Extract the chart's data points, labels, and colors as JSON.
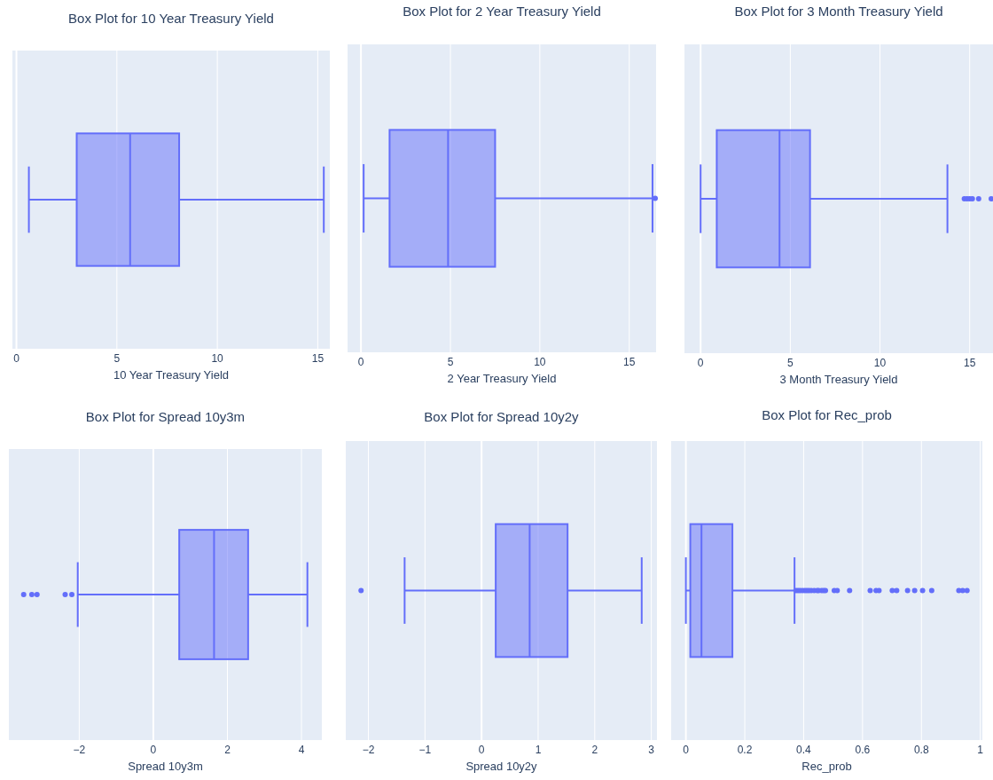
{
  "chart_data": [
    {
      "type": "box",
      "title": "Box Plot for 10 Year Treasury Yield",
      "xlabel": "10 Year Treasury Yield",
      "orientation": "horizontal",
      "categories": [
        null
      ],
      "color": "#636efa",
      "boxes": [
        {
          "low": 0.62,
          "q1": 3.0,
          "median": 5.66,
          "q3": 8.1,
          "high": 15.3
        }
      ],
      "xlim": [
        -0.2,
        15.6
      ],
      "xticks": [
        0,
        5,
        10,
        15
      ],
      "grid": "x",
      "tick_labels": "x"
    },
    {
      "type": "box",
      "title": "Box Plot for 2 Year Treasury Yield",
      "xlabel": "2 Year Treasury Yield",
      "orientation": "horizontal",
      "categories": [
        null
      ],
      "color": "#636efa",
      "boxes": [
        {
          "low": 0.15,
          "q1": 1.6,
          "median": 4.87,
          "q3": 7.5,
          "high": 16.3,
          "outliers": [
            16.45
          ]
        }
      ],
      "xlim": [
        -0.75,
        16.5
      ],
      "xticks": [
        0,
        5,
        10,
        15
      ],
      "grid": "x",
      "tick_labels": "x"
    },
    {
      "type": "box",
      "title": "Box Plot for 3 Month Treasury Yield",
      "xlabel": "3 Month Treasury Yield",
      "orientation": "horizontal",
      "categories": [
        null
      ],
      "color": "#636efa",
      "boxes": [
        {
          "low": 0.0,
          "q1": 0.9,
          "median": 4.4,
          "q3": 6.1,
          "high": 13.76,
          "outliers": [
            14.7,
            14.85,
            15.0,
            15.15,
            15.5,
            16.2
          ]
        }
      ],
      "xlim": [
        -0.9,
        16.3
      ],
      "xticks": [
        0,
        5,
        10,
        15
      ],
      "grid": "x",
      "tick_labels": "x"
    },
    {
      "type": "box",
      "title": "Box Plot for Spread 10y3m",
      "xlabel": "Spread 10y3m",
      "orientation": "horizontal",
      "categories": [
        null
      ],
      "color": "#636efa",
      "boxes": [
        {
          "low": -2.04,
          "q1": 0.7,
          "median": 1.64,
          "q3": 2.56,
          "high": 4.16,
          "outliers": [
            -3.5,
            -3.28,
            -3.14,
            -2.38,
            -2.2
          ]
        }
      ],
      "xlim": [
        -3.9,
        4.55
      ],
      "xticks": [
        -2,
        0,
        2,
        4
      ],
      "grid": "x",
      "tick_labels": "x"
    },
    {
      "type": "box",
      "title": "Box Plot for Spread 10y2y",
      "xlabel": "Spread 10y2y",
      "orientation": "horizontal",
      "categories": [
        null
      ],
      "color": "#636efa",
      "boxes": [
        {
          "low": -1.36,
          "q1": 0.25,
          "median": 0.85,
          "q3": 1.52,
          "high": 2.83,
          "outliers": [
            -2.13
          ]
        }
      ],
      "xlim": [
        -2.4,
        3.1
      ],
      "xticks": [
        -2,
        -1,
        0,
        1,
        2,
        3
      ],
      "grid": "x",
      "tick_labels": "x"
    },
    {
      "type": "box",
      "title": "Box Plot for Rec_prob",
      "xlabel": "Rec_prob",
      "orientation": "horizontal",
      "categories": [
        null
      ],
      "color": "#636efa",
      "boxes": [
        {
          "low": 0.0,
          "q1": 0.015,
          "median": 0.053,
          "q3": 0.158,
          "high": 0.369,
          "outliers": [
            0.374,
            0.381,
            0.388,
            0.396,
            0.404,
            0.411,
            0.418,
            0.426,
            0.436,
            0.446,
            0.451,
            0.461,
            0.468,
            0.474,
            0.504,
            0.514,
            0.556,
            0.626,
            0.646,
            0.656,
            0.701,
            0.716,
            0.753,
            0.777,
            0.804,
            0.835,
            0.927,
            0.94,
            0.955
          ]
        }
      ],
      "xlim": [
        -0.05,
        1.007
      ],
      "xticks": [
        0,
        0.2,
        0.4,
        0.6,
        0.8,
        1
      ],
      "grid": "x",
      "tick_labels": "x"
    }
  ]
}
